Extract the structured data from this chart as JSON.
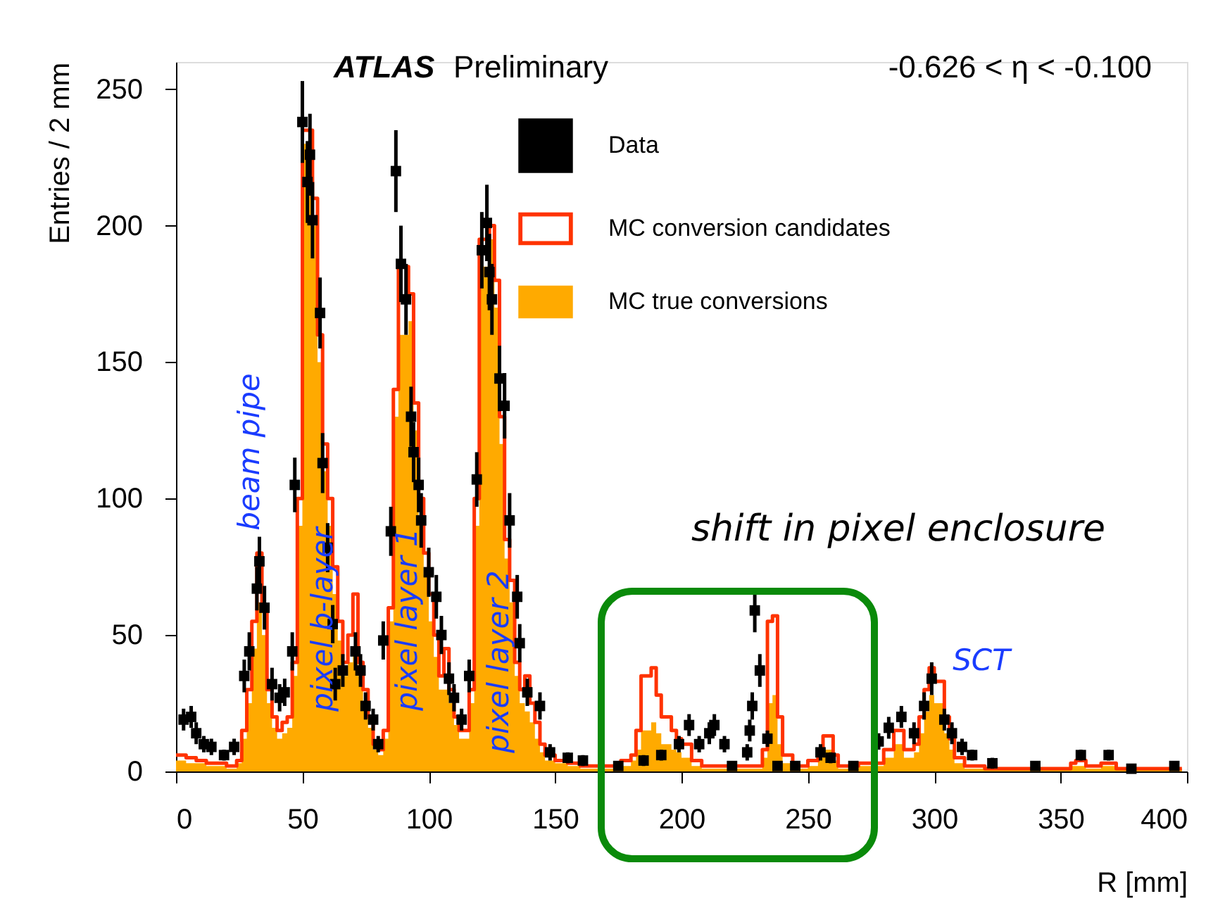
{
  "chart_data": {
    "type": "scatter",
    "xlabel": "R [mm]",
    "ylabel": "Entries / 2 mm",
    "xlim": [
      0,
      400
    ],
    "xticks": [
      0,
      50,
      100,
      150,
      200,
      250,
      300,
      350,
      400
    ],
    "ylim": [
      0,
      260
    ],
    "yticks": [
      0,
      50,
      100,
      150,
      200,
      250
    ],
    "grid": false,
    "legend": "top right",
    "series": [
      {
        "name": "Data",
        "color": "#000000",
        "marker": "square",
        "x": [
          3,
          6,
          8,
          11,
          14,
          19,
          23,
          27,
          29,
          32,
          33,
          35,
          38,
          41,
          43,
          46,
          47,
          50,
          52,
          53,
          54,
          57,
          58,
          60,
          62,
          63,
          66,
          71,
          73,
          75,
          78,
          80,
          82,
          85,
          87,
          89,
          91,
          93,
          94,
          96,
          97,
          100,
          103,
          105,
          108,
          110,
          113,
          116,
          119,
          121,
          123,
          124,
          125,
          128,
          130,
          132,
          135,
          136,
          139,
          144,
          148,
          155,
          161,
          175,
          185,
          192,
          199,
          203,
          207,
          211,
          213,
          217,
          220,
          226,
          227,
          228,
          229,
          231,
          234,
          238,
          245,
          255,
          259,
          268,
          278,
          282,
          287,
          292,
          296,
          299,
          304,
          307,
          311,
          315,
          323,
          340,
          358,
          369,
          378,
          395
        ],
        "values": [
          19,
          20,
          14,
          10,
          9,
          6,
          9,
          35,
          44,
          67,
          77,
          60,
          32,
          27,
          29,
          44,
          105,
          238,
          216,
          226,
          202,
          168,
          113,
          82,
          54,
          32,
          37,
          44,
          37,
          24,
          19,
          10,
          48,
          88,
          220,
          186,
          173,
          130,
          117,
          105,
          92,
          73,
          64,
          50,
          34,
          27,
          19,
          35,
          107,
          191,
          201,
          183,
          173,
          144,
          134,
          92,
          64,
          47,
          29,
          24,
          7,
          5,
          4,
          2,
          4,
          6,
          10,
          17,
          10,
          14,
          17,
          10,
          2,
          7,
          15,
          24,
          59,
          37,
          12,
          2,
          2,
          7,
          5,
          2,
          11,
          16,
          20,
          14,
          24,
          34,
          19,
          14,
          9,
          6,
          3,
          2,
          6,
          6,
          1,
          2
        ],
        "errors": [
          4,
          4,
          4,
          3,
          3,
          2,
          3,
          6,
          7,
          8,
          9,
          8,
          6,
          5,
          5,
          7,
          10,
          15,
          15,
          15,
          14,
          13,
          11,
          9,
          7,
          6,
          6,
          7,
          6,
          5,
          4,
          3,
          7,
          9,
          15,
          14,
          13,
          11,
          11,
          10,
          10,
          9,
          8,
          7,
          6,
          5,
          4,
          6,
          10,
          14,
          14,
          14,
          13,
          12,
          12,
          10,
          8,
          7,
          5,
          5,
          3,
          2,
          2,
          1,
          2,
          2,
          3,
          4,
          3,
          4,
          4,
          3,
          1,
          3,
          4,
          5,
          8,
          6,
          3,
          1,
          1,
          3,
          2,
          1,
          3,
          4,
          4,
          4,
          5,
          6,
          4,
          4,
          3,
          2,
          2,
          1,
          2,
          2,
          1,
          1
        ]
      },
      {
        "name": "MC conversion candidates",
        "type": "step",
        "color": "#ff3300",
        "x": [
          0,
          4,
          8,
          12,
          16,
          20,
          24,
          26,
          28,
          30,
          32,
          34,
          36,
          38,
          40,
          42,
          44,
          46,
          48,
          50,
          54,
          56,
          58,
          60,
          62,
          64,
          66,
          68,
          70,
          72,
          74,
          76,
          78,
          80,
          82,
          84,
          86,
          88,
          92,
          94,
          96,
          98,
          100,
          102,
          104,
          106,
          108,
          110,
          112,
          114,
          116,
          118,
          120,
          124,
          126,
          128,
          130,
          132,
          134,
          136,
          138,
          140,
          142,
          144,
          146,
          150,
          155,
          160,
          170,
          176,
          180,
          182,
          184,
          188,
          190,
          192,
          196,
          198,
          200,
          204,
          208,
          220,
          228,
          232,
          234,
          236,
          238,
          240,
          244,
          250,
          254,
          256,
          260,
          262,
          270,
          280,
          284,
          288,
          292,
          294,
          296,
          298,
          300,
          304,
          306,
          308,
          312,
          320,
          350,
          354,
          356,
          360,
          366,
          372,
          398
        ],
        "values": [
          6,
          5,
          4,
          3,
          3,
          2,
          4,
          15,
          30,
          55,
          80,
          60,
          30,
          20,
          15,
          18,
          20,
          40,
          100,
          235,
          210,
          160,
          120,
          100,
          75,
          55,
          40,
          50,
          65,
          40,
          30,
          20,
          10,
          8,
          15,
          60,
          140,
          185,
          175,
          135,
          100,
          80,
          65,
          50,
          35,
          45,
          30,
          20,
          15,
          15,
          30,
          100,
          195,
          200,
          180,
          130,
          85,
          70,
          40,
          30,
          35,
          25,
          18,
          10,
          6,
          4,
          3,
          2,
          2,
          4,
          6,
          15,
          35,
          38,
          28,
          20,
          15,
          12,
          10,
          4,
          2,
          2,
          2,
          8,
          55,
          57,
          20,
          6,
          2,
          4,
          8,
          13,
          6,
          2,
          3,
          8,
          15,
          8,
          10,
          20,
          30,
          38,
          33,
          20,
          12,
          5,
          2,
          1,
          1,
          3,
          4,
          2,
          3,
          1,
          1
        ]
      },
      {
        "name": "MC true conversions",
        "type": "area",
        "color": "#ffaa00",
        "x": [
          0,
          4,
          8,
          12,
          16,
          20,
          24,
          26,
          28,
          30,
          32,
          34,
          36,
          38,
          40,
          42,
          44,
          46,
          48,
          50,
          54,
          56,
          58,
          60,
          62,
          64,
          66,
          68,
          70,
          72,
          74,
          76,
          78,
          80,
          82,
          84,
          86,
          88,
          92,
          94,
          96,
          98,
          100,
          102,
          104,
          106,
          108,
          110,
          112,
          114,
          116,
          118,
          120,
          124,
          126,
          128,
          130,
          132,
          134,
          136,
          138,
          140,
          142,
          144,
          146,
          150,
          155,
          160,
          170,
          176,
          180,
          182,
          184,
          188,
          190,
          192,
          196,
          198,
          200,
          204,
          208,
          220,
          228,
          232,
          234,
          236,
          238,
          240,
          244,
          250,
          254,
          256,
          260,
          262,
          270,
          280,
          284,
          288,
          292,
          294,
          296,
          298,
          300,
          304,
          306,
          308,
          312,
          320,
          350,
          354,
          356,
          360,
          366,
          372,
          398
        ],
        "values": [
          4,
          3,
          3,
          2,
          2,
          1,
          3,
          12,
          25,
          45,
          62,
          50,
          25,
          16,
          12,
          14,
          16,
          35,
          90,
          230,
          200,
          150,
          110,
          90,
          65,
          48,
          35,
          40,
          45,
          35,
          25,
          16,
          8,
          6,
          12,
          55,
          130,
          160,
          165,
          125,
          90,
          72,
          55,
          42,
          30,
          30,
          25,
          17,
          12,
          12,
          25,
          90,
          185,
          195,
          170,
          120,
          78,
          62,
          35,
          25,
          22,
          18,
          12,
          7,
          4,
          3,
          2,
          1,
          1,
          2,
          4,
          8,
          15,
          18,
          14,
          10,
          8,
          7,
          5,
          2,
          1,
          1,
          1,
          5,
          25,
          28,
          10,
          3,
          1,
          2,
          5,
          8,
          4,
          1,
          2,
          5,
          10,
          5,
          7,
          14,
          22,
          28,
          25,
          14,
          8,
          3,
          1,
          1,
          1,
          2,
          2,
          1,
          2,
          1,
          1
        ]
      }
    ],
    "annotations": [
      "ATLAS",
      "Preliminary",
      "-0.626 < η < -0.100",
      "beam pipe",
      "pixel b-layer",
      "pixel layer 1",
      "pixel layer 2",
      "shift in pixel enclosure",
      "SCT"
    ]
  }
}
